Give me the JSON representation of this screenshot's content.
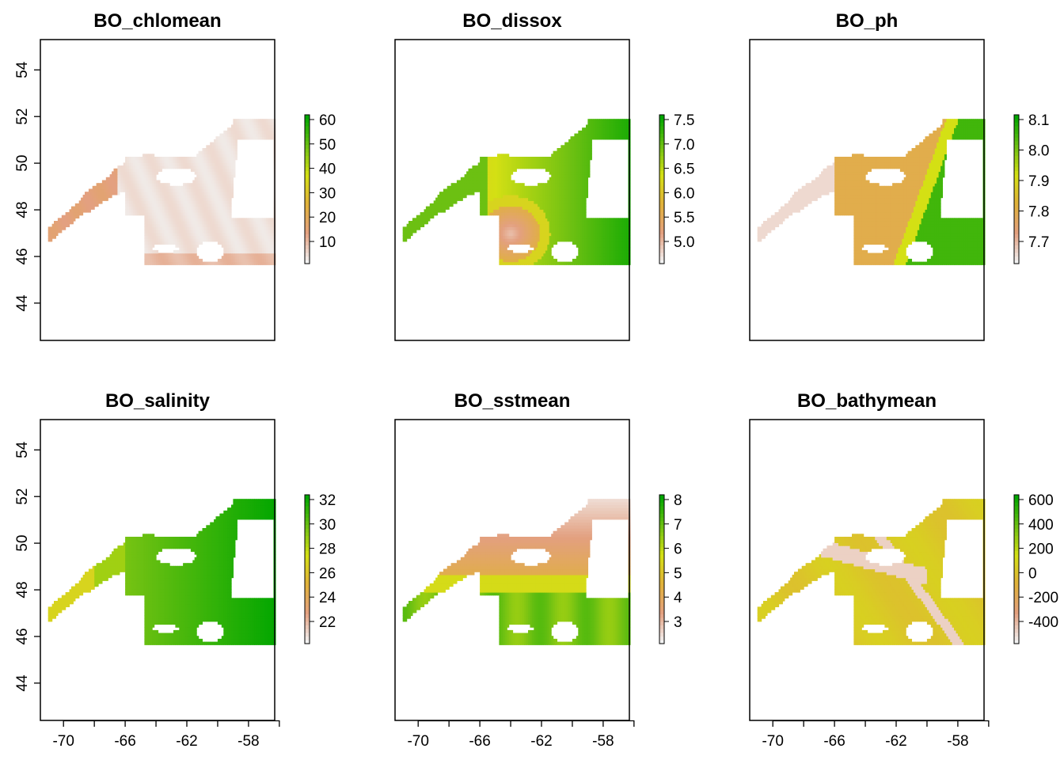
{
  "figure": {
    "x_ticks": [
      "-70",
      "-66",
      "-62",
      "-58"
    ],
    "y_ticks": [
      "44",
      "46",
      "48",
      "50",
      "52",
      "54"
    ],
    "axis_extent": {
      "lon": [
        -71.5,
        -56.3
      ],
      "lat": [
        42.4,
        55.3
      ]
    },
    "palette": [
      "#f2f2f2",
      "#e3a080",
      "#e0b13a",
      "#d4e014",
      "#6cc012",
      "#00a600"
    ],
    "panels": [
      {
        "title": "BO_chlomean",
        "variable": "chlomean",
        "legend_labels": [
          "60",
          "50",
          "40",
          "30",
          "20",
          "10"
        ]
      },
      {
        "title": "BO_dissox",
        "variable": "dissox",
        "legend_labels": [
          "7.5",
          "7.0",
          "6.5",
          "6.0",
          "5.5",
          "5.0"
        ]
      },
      {
        "title": "BO_ph",
        "variable": "ph",
        "legend_labels": [
          "8.1",
          "8.0",
          "7.9",
          "7.8",
          "7.7"
        ]
      },
      {
        "title": "BO_salinity",
        "variable": "salinity",
        "legend_labels": [
          "32",
          "30",
          "28",
          "26",
          "24",
          "22"
        ]
      },
      {
        "title": "BO_sstmean",
        "variable": "sstmean",
        "legend_labels": [
          "8",
          "7",
          "6",
          "5",
          "4",
          "3"
        ]
      },
      {
        "title": "BO_bathymean",
        "variable": "bathymean",
        "legend_labels": [
          "600",
          "400",
          "200",
          "0",
          "-200",
          "-400"
        ]
      }
    ]
  }
}
